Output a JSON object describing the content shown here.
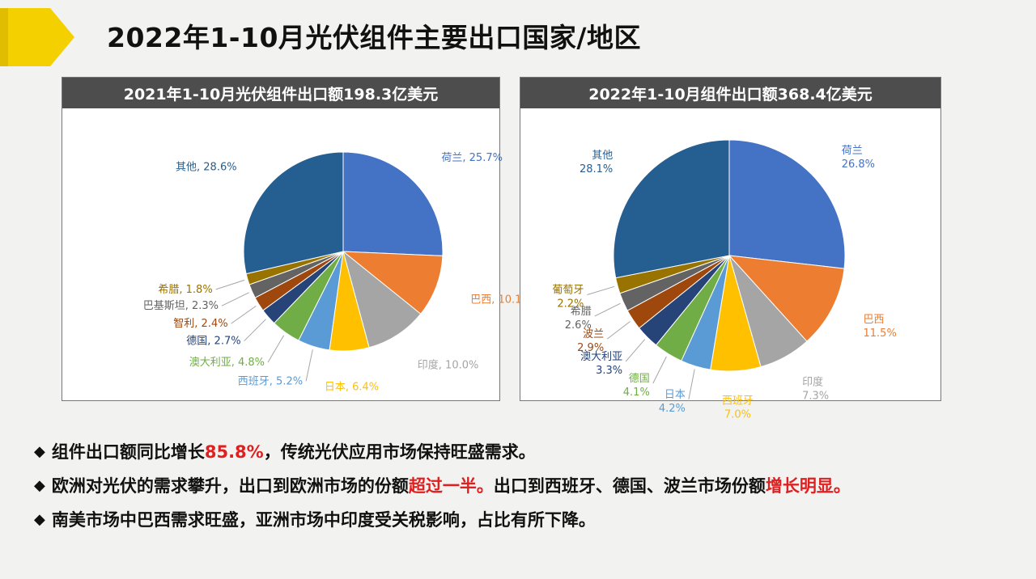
{
  "page": {
    "title": "2022年1-10月光伏组件主要出口国家/地区"
  },
  "bullets": [
    {
      "segments": [
        {
          "text": "组件出口额同比增长",
          "highlight": false
        },
        {
          "text": "85.8%",
          "highlight": true
        },
        {
          "text": "，传统光伏应用市场保持旺盛需求。",
          "highlight": false
        }
      ]
    },
    {
      "segments": [
        {
          "text": "欧洲对光伏的需求攀升，出口到欧洲市场的份额",
          "highlight": false
        },
        {
          "text": "超过一半。",
          "highlight": true
        },
        {
          "text": "出口到西班牙、德国、波兰市场份额",
          "highlight": false
        },
        {
          "text": "增长明显。",
          "highlight": true
        }
      ]
    },
    {
      "segments": [
        {
          "text": "南美市场中巴西需求旺盛，亚洲市场中印度受关税影响，占比有所下降。",
          "highlight": false
        }
      ]
    }
  ],
  "colors": {
    "highlight": "#e02020",
    "header_bg": "#4d4d4d",
    "arrow": "#f5d000"
  },
  "chart_data": [
    {
      "type": "pie",
      "title": "2021年1-10月光伏组件出口额198.3亿美元",
      "slices": [
        {
          "label": "荷兰",
          "value": 25.7,
          "color": "#4472c4"
        },
        {
          "label": "巴西",
          "value": 10.1,
          "color": "#ed7d31"
        },
        {
          "label": "印度",
          "value": 10.0,
          "color": "#a5a5a5"
        },
        {
          "label": "日本",
          "value": 6.4,
          "color": "#ffc000"
        },
        {
          "label": "西班牙",
          "value": 5.2,
          "color": "#5b9bd5"
        },
        {
          "label": "澳大利亚",
          "value": 4.8,
          "color": "#70ad47"
        },
        {
          "label": "德国",
          "value": 2.7,
          "color": "#264478"
        },
        {
          "label": "智利",
          "value": 2.4,
          "color": "#9e480e"
        },
        {
          "label": "巴基斯坦",
          "value": 2.3,
          "color": "#636363"
        },
        {
          "label": "希腊",
          "value": 1.8,
          "color": "#997300"
        },
        {
          "label": "其他",
          "value": 28.6,
          "color": "#255e91"
        }
      ],
      "label_format": "inline"
    },
    {
      "type": "pie",
      "title": "2022年1-10月组件出口额368.4亿美元",
      "slices": [
        {
          "label": "荷兰",
          "value": 26.8,
          "color": "#4472c4"
        },
        {
          "label": "巴西",
          "value": 11.5,
          "color": "#ed7d31"
        },
        {
          "label": "印度",
          "value": 7.3,
          "color": "#a5a5a5"
        },
        {
          "label": "西班牙",
          "value": 7.0,
          "color": "#ffc000"
        },
        {
          "label": "日本",
          "value": 4.2,
          "color": "#5b9bd5"
        },
        {
          "label": "德国",
          "value": 4.1,
          "color": "#70ad47"
        },
        {
          "label": "澳大利亚",
          "value": 3.3,
          "color": "#264478"
        },
        {
          "label": "波兰",
          "value": 2.9,
          "color": "#9e480e"
        },
        {
          "label": "希腊",
          "value": 2.6,
          "color": "#636363"
        },
        {
          "label": "葡萄牙",
          "value": 2.2,
          "color": "#997300"
        },
        {
          "label": "其他",
          "value": 28.1,
          "color": "#255e91"
        }
      ],
      "label_format": "stacked"
    }
  ]
}
